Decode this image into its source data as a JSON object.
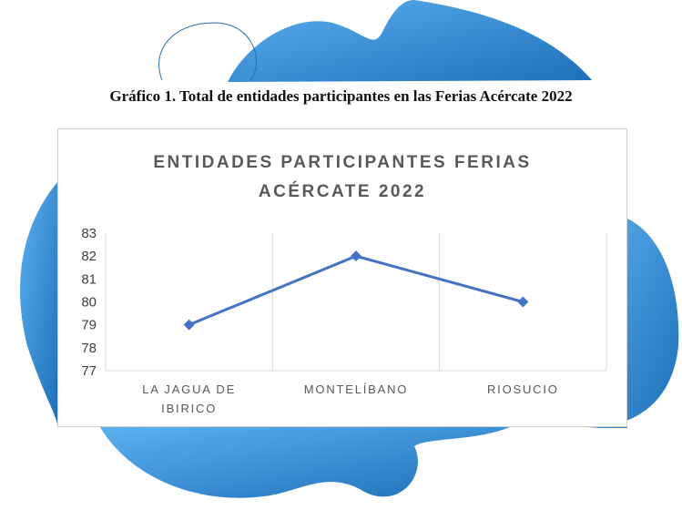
{
  "document_caption": "Gráfico 1. Total de entidades participantes en las Ferias Acércate 2022",
  "colors": {
    "line": "#4472C4",
    "blob_light": "#5BB0F0",
    "blob_dark": "#1E6FB8",
    "grid": "#d9d9d9"
  },
  "chart_data": {
    "type": "line",
    "title_lines": [
      "ENTIDADES PARTICIPANTES FERIAS",
      "ACÉRCATE 2022"
    ],
    "categories": [
      [
        "LA JAGUA DE",
        "IBIRICO"
      ],
      [
        "MONTELÍBANO"
      ],
      [
        "RIOSUCIO"
      ]
    ],
    "values": [
      79,
      82,
      80
    ],
    "y_ticks": [
      "83",
      "82",
      "81",
      "80",
      "79",
      "78",
      "77"
    ],
    "ylim": [
      77,
      83
    ],
    "grid": "vertical",
    "legend": "none",
    "xlabel": "",
    "ylabel": ""
  }
}
